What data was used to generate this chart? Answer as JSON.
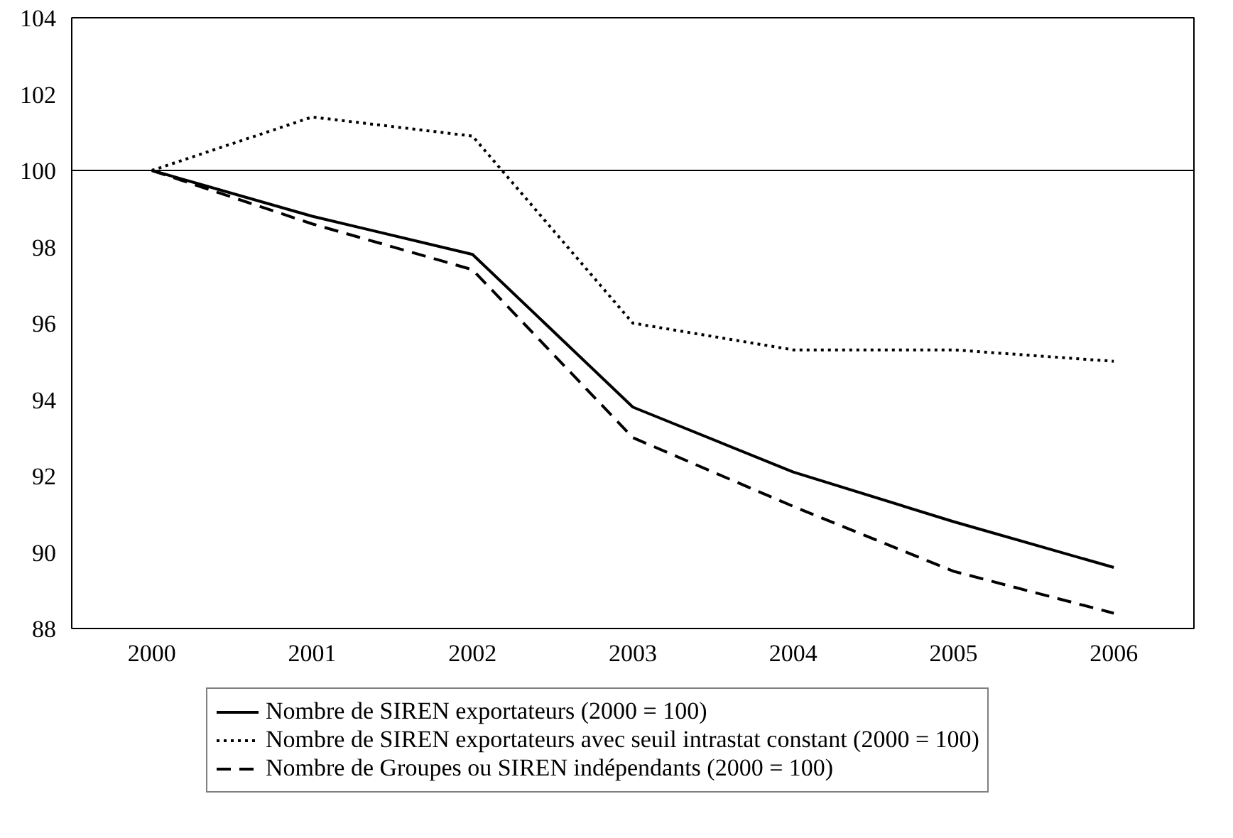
{
  "chart_data": {
    "type": "line",
    "categories": [
      "2000",
      "2001",
      "2002",
      "2003",
      "2004",
      "2005",
      "2006"
    ],
    "series": [
      {
        "name": "Nombre de SIREN exportateurs (2000 = 100)",
        "color": "#000000",
        "line_style": "solid",
        "values": [
          100,
          98.8,
          97.8,
          93.8,
          92.1,
          90.8,
          89.6
        ]
      },
      {
        "name": "Nombre de SIREN exportateurs avec seuil intrastat constant (2000 = 100)",
        "color": "#000000",
        "line_style": "dotted",
        "values": [
          100,
          101.4,
          100.9,
          96.0,
          95.3,
          95.3,
          95.0
        ]
      },
      {
        "name": "Nombre de Groupes ou SIREN indépendants (2000 = 100)",
        "color": "#000000",
        "line_style": "dashed",
        "values": [
          100,
          98.6,
          97.4,
          93.0,
          91.2,
          89.5,
          88.4
        ]
      }
    ],
    "ylim": [
      88,
      104
    ],
    "yticks": [
      88,
      90,
      92,
      94,
      96,
      98,
      100,
      102,
      104
    ],
    "ref_lines": [
      {
        "axis": "y",
        "value": 100,
        "color": "#000000"
      }
    ],
    "grid": false,
    "legend": "bottom",
    "marker": "none"
  }
}
